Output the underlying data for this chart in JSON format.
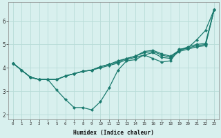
{
  "xlabel": "Humidex (Indice chaleur)",
  "bg_color": "#d8f0ee",
  "line_color": "#1a7a6e",
  "grid_color": "#b8dcd8",
  "xlim": [
    -0.5,
    23.5
  ],
  "ylim": [
    1.8,
    6.8
  ],
  "xticks": [
    0,
    1,
    2,
    3,
    4,
    5,
    6,
    7,
    8,
    9,
    10,
    11,
    12,
    13,
    14,
    15,
    16,
    17,
    18,
    19,
    20,
    21,
    22,
    23
  ],
  "yticks": [
    2,
    3,
    4,
    5,
    6
  ],
  "series": [
    [
      4.2,
      3.9,
      3.6,
      3.5,
      3.5,
      3.05,
      2.65,
      2.3,
      2.3,
      2.2,
      2.55,
      3.15,
      3.9,
      4.3,
      4.35,
      4.55,
      4.4,
      4.25,
      4.3,
      4.8,
      4.85,
      5.2,
      5.6,
      6.5
    ],
    [
      4.2,
      3.9,
      3.6,
      3.5,
      3.5,
      3.5,
      3.65,
      3.75,
      3.85,
      3.9,
      4.0,
      4.1,
      4.2,
      4.35,
      4.45,
      4.55,
      4.65,
      4.45,
      4.4,
      4.7,
      4.8,
      4.9,
      4.95,
      6.5
    ],
    [
      4.2,
      3.9,
      3.6,
      3.5,
      3.5,
      3.5,
      3.65,
      3.75,
      3.85,
      3.9,
      4.05,
      4.15,
      4.25,
      4.4,
      4.5,
      4.65,
      4.7,
      4.55,
      4.45,
      4.75,
      4.85,
      4.95,
      5.0,
      6.5
    ],
    [
      4.2,
      3.9,
      3.6,
      3.5,
      3.5,
      3.5,
      3.65,
      3.75,
      3.85,
      3.9,
      4.05,
      4.15,
      4.3,
      4.4,
      4.5,
      4.7,
      4.75,
      4.6,
      4.5,
      4.75,
      4.9,
      5.0,
      5.05,
      6.5
    ]
  ]
}
